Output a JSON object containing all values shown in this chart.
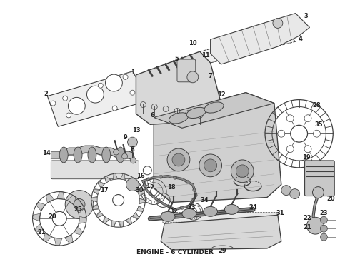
{
  "caption": "ENGINE - 6 CYLINDER",
  "caption_fontsize": 6.5,
  "caption_fontweight": "bold",
  "bg_color": "#ffffff",
  "line_color": "#404040",
  "figsize": [
    4.9,
    3.6
  ],
  "dpi": 100
}
